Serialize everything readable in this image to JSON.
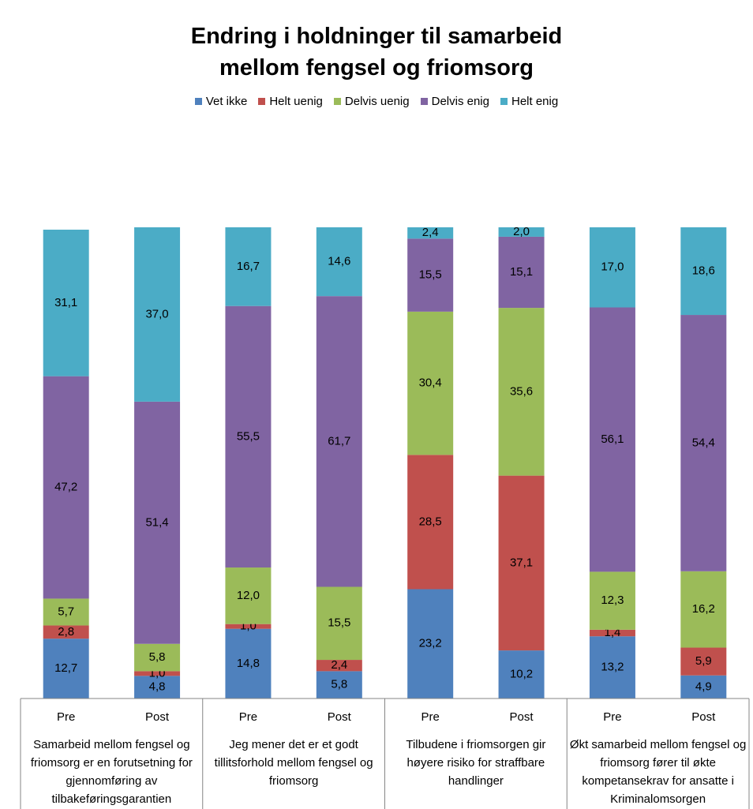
{
  "chart_data": {
    "type": "stacked_bar",
    "title": "Endring i holdninger til samarbeid mellom fengsel og friomsorg",
    "categories": [
      "Pre",
      "Post",
      "Pre",
      "Post",
      "Pre",
      "Post",
      "Pre",
      "Post"
    ],
    "groups": [
      "Samarbeid mellom fengsel og friomsorg er en forutsetning for gjennomføring av tilbakeføringsgarantien",
      "Jeg mener det er et godt tillitsforhold mellom fengsel og friomsorg",
      "Tilbudene i friomsorgen gir høyere risiko for straffbare handlinger",
      "Økt samarbeid mellom fengsel og friomsorg fører til økte kompetansekrav for ansatte i Kriminalomsorgen"
    ],
    "ylim": [
      0,
      100
    ],
    "legend": "top",
    "series": [
      {
        "name": "Vet ikke",
        "color": "#4f81bd",
        "values": [
          12.7,
          4.8,
          14.8,
          5.8,
          23.2,
          10.2,
          13.2,
          4.9
        ],
        "value_labels": [
          "12,7",
          "4,8",
          "14,8",
          "5,8",
          "23,2",
          "10,2",
          "13,2",
          "4,9"
        ]
      },
      {
        "name": "Helt uenig",
        "color": "#c0504d",
        "values": [
          2.8,
          1.0,
          1.0,
          2.4,
          28.5,
          37.1,
          1.4,
          5.9
        ],
        "value_labels": [
          "2,8",
          "1,0",
          "1,0",
          "2,4",
          "28,5",
          "37,1",
          "1,4",
          "5,9"
        ]
      },
      {
        "name": "Delvis uenig",
        "color": "#9bbb59",
        "values": [
          5.7,
          5.8,
          12.0,
          15.5,
          30.4,
          35.6,
          12.3,
          16.2
        ],
        "value_labels": [
          "5,7",
          "5,8",
          "12,0",
          "15,5",
          "30,4",
          "35,6",
          "12,3",
          "16,2"
        ]
      },
      {
        "name": "Delvis enig",
        "color": "#8064a2",
        "values": [
          47.2,
          51.4,
          55.5,
          61.7,
          15.5,
          15.1,
          56.1,
          54.4
        ],
        "value_labels": [
          "47,2",
          "51,4",
          "55,5",
          "61,7",
          "15,5",
          "15,1",
          "56,1",
          "54,4"
        ]
      },
      {
        "name": "Helt enig",
        "color": "#4bacc6",
        "values": [
          31.1,
          37.0,
          16.7,
          14.6,
          2.4,
          2.0,
          17.0,
          18.6
        ],
        "value_labels": [
          "31,1",
          "37,0",
          "16,7",
          "14,6",
          "2,4",
          "2,0",
          "17,0",
          "18,6"
        ]
      }
    ]
  }
}
